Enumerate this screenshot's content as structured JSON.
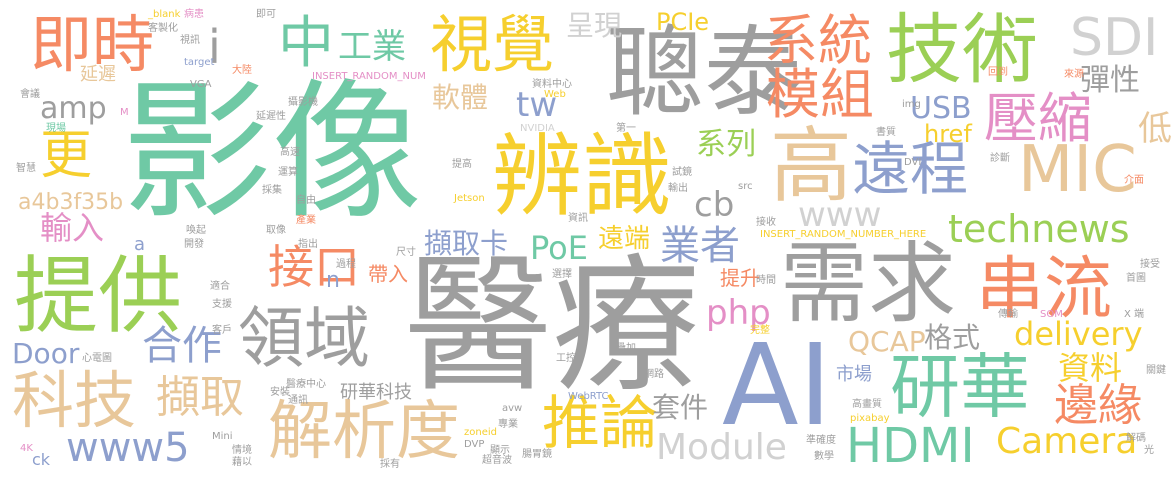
{
  "cloud": {
    "words": [
      {
        "text": "影像",
        "color": "#6fc9a5"
      },
      {
        "text": "醫療",
        "color": "#9e9e9e"
      },
      {
        "text": "AI",
        "color": "#8d9fcd"
      },
      {
        "text": "聰泰",
        "color": "#9e9e9e"
      },
      {
        "text": "需求",
        "color": "#9e9e9e"
      },
      {
        "text": "辨識",
        "color": "#f6cf2e"
      },
      {
        "text": "技術",
        "color": "#9bcf55"
      },
      {
        "text": "視覺",
        "color": "#f6cf2e"
      },
      {
        "text": "提供",
        "color": "#9bcf55"
      },
      {
        "text": "MIC",
        "color": "#e8c79a"
      },
      {
        "text": "高",
        "color": "#e8c79a"
      },
      {
        "text": "遠程",
        "color": "#8d9fcd"
      },
      {
        "text": "研華",
        "color": "#6fc9a5"
      },
      {
        "text": "串流",
        "color": "#f58a64"
      },
      {
        "text": "領域",
        "color": "#9e9e9e"
      },
      {
        "text": "解析度",
        "color": "#e8c79a"
      },
      {
        "text": "科技",
        "color": "#e8c79a"
      },
      {
        "text": "推論",
        "color": "#f6cf2e"
      },
      {
        "text": "即時",
        "color": "#f58a64"
      },
      {
        "text": "系統",
        "color": "#f58a64"
      },
      {
        "text": "模組",
        "color": "#f58a64"
      },
      {
        "text": "中",
        "color": "#6fc9a5"
      },
      {
        "text": "工業",
        "color": "#6fc9a5"
      },
      {
        "text": "HDMI",
        "color": "#6fc9a5"
      },
      {
        "text": "壓縮",
        "color": "#e48fc6"
      },
      {
        "text": "SDI",
        "color": "#d1d1d1"
      },
      {
        "text": "彈性",
        "color": "#9e9e9e"
      },
      {
        "text": "i",
        "color": "#9e9e9e"
      },
      {
        "text": "接",
        "color": "#f58a64"
      },
      {
        "text": "口",
        "color": "#f58a64"
      },
      {
        "text": "technews",
        "color": "#9bcf55"
      },
      {
        "text": "www5",
        "color": "#8d9fcd"
      },
      {
        "text": "Camera",
        "color": "#f6cf2e"
      },
      {
        "text": "Module",
        "color": "#d1d1d1"
      },
      {
        "text": "擷取",
        "color": "#e8c79a"
      },
      {
        "text": "邊緣",
        "color": "#f58a64"
      },
      {
        "text": "資料",
        "color": "#f6cf2e"
      },
      {
        "text": "delivery",
        "color": "#f6cf2e"
      },
      {
        "text": "合作",
        "color": "#8d9fcd"
      },
      {
        "text": "更",
        "color": "#f6cf2e"
      },
      {
        "text": "業者",
        "color": "#8d9fcd"
      },
      {
        "text": "PoE",
        "color": "#6fc9a5"
      },
      {
        "text": "www",
        "color": "#d1d1d1"
      },
      {
        "text": "USB",
        "color": "#8d9fcd"
      },
      {
        "text": "低",
        "color": "#e8c79a"
      },
      {
        "text": "php",
        "color": "#e48fc6"
      },
      {
        "text": "cb",
        "color": "#9e9e9e"
      },
      {
        "text": "tw",
        "color": "#8d9fcd"
      },
      {
        "text": "amp",
        "color": "#9e9e9e"
      },
      {
        "text": "呈現",
        "color": "#d1d1d1"
      },
      {
        "text": "PCIe",
        "color": "#f6cf2e"
      },
      {
        "text": "軟體",
        "color": "#e8c79a"
      },
      {
        "text": "系列",
        "color": "#9bcf55"
      },
      {
        "text": "QCAP",
        "color": "#e8c79a"
      },
      {
        "text": "格式",
        "color": "#9e9e9e"
      },
      {
        "text": "Door",
        "color": "#8d9fcd"
      },
      {
        "text": "輸入",
        "color": "#e48fc6"
      },
      {
        "text": "a4b3f35b",
        "color": "#e8c79a"
      },
      {
        "text": "擷取卡",
        "color": "#8d9fcd"
      },
      {
        "text": "遠端",
        "color": "#f6cf2e"
      },
      {
        "text": "套件",
        "color": "#9e9e9e"
      },
      {
        "text": "href",
        "color": "#f6cf2e"
      },
      {
        "text": "提升",
        "color": "#f58a64"
      },
      {
        "text": "帶入",
        "color": "#f58a64"
      },
      {
        "text": "研華科技",
        "color": "#9e9e9e"
      },
      {
        "text": "市場",
        "color": "#8d9fcd"
      },
      {
        "text": "延遲",
        "color": "#e8c79a"
      },
      {
        "text": "n",
        "color": "#8d9fcd"
      },
      {
        "text": "a",
        "color": "#8d9fcd"
      },
      {
        "text": "ck",
        "color": "#8d9fcd"
      },
      {
        "text": "_blank",
        "color": "#f6cf2e"
      },
      {
        "text": "即可",
        "color": "#9e9e9e"
      },
      {
        "text": "客製化",
        "color": "#9e9e9e"
      },
      {
        "text": "病患",
        "color": "#e48fc6"
      },
      {
        "text": "視訊",
        "color": "#9e9e9e"
      },
      {
        "text": "target",
        "color": "#8d9fcd"
      },
      {
        "text": "VGA",
        "color": "#9e9e9e"
      },
      {
        "text": "大陸",
        "color": "#f58a64"
      },
      {
        "text": "INSERT_RANDOM_NUM",
        "color": "#e48fc6"
      },
      {
        "text": "資料中心",
        "color": "#9e9e9e"
      },
      {
        "text": "Web",
        "color": "#f6cf2e"
      },
      {
        "text": "攝影機",
        "color": "#9e9e9e"
      },
      {
        "text": "NVIDIA",
        "color": "#d1d1d1"
      },
      {
        "text": "第一",
        "color": "#9e9e9e"
      },
      {
        "text": "img",
        "color": "#9e9e9e"
      },
      {
        "text": "書質",
        "color": "#9e9e9e"
      },
      {
        "text": "會議",
        "color": "#9e9e9e"
      },
      {
        "text": "現場",
        "color": "#6fc9a5"
      },
      {
        "text": "M",
        "color": "#e48fc6"
      },
      {
        "text": "延遲性",
        "color": "#9e9e9e"
      },
      {
        "text": "高速",
        "color": "#9e9e9e"
      },
      {
        "text": "智慧",
        "color": "#9e9e9e"
      },
      {
        "text": "運算",
        "color": "#9e9e9e"
      },
      {
        "text": "採集",
        "color": "#9e9e9e"
      },
      {
        "text": "自由",
        "color": "#9e9e9e"
      },
      {
        "text": "輸出",
        "color": "#9e9e9e"
      },
      {
        "text": "提高",
        "color": "#9e9e9e"
      },
      {
        "text": "試鏡",
        "color": "#9e9e9e"
      },
      {
        "text": "src",
        "color": "#9e9e9e"
      },
      {
        "text": "DVI",
        "color": "#9e9e9e"
      },
      {
        "text": "診斷",
        "color": "#9e9e9e"
      },
      {
        "text": "介面",
        "color": "#f58a64"
      },
      {
        "text": "回到",
        "color": "#f58a64"
      },
      {
        "text": "來源",
        "color": "#f58a64"
      },
      {
        "text": "Jetson",
        "color": "#f6cf2e"
      },
      {
        "text": "產業",
        "color": "#f58a64"
      },
      {
        "text": "取像",
        "color": "#9e9e9e"
      },
      {
        "text": "指出",
        "color": "#9e9e9e"
      },
      {
        "text": "過程",
        "color": "#9e9e9e"
      },
      {
        "text": "尺寸",
        "color": "#9e9e9e"
      },
      {
        "text": "資訊",
        "color": "#9e9e9e"
      },
      {
        "text": "接收",
        "color": "#9e9e9e"
      },
      {
        "text": "INSERT_RANDOM_NUMBER_HERE",
        "color": "#f6cf2e"
      },
      {
        "text": "時間",
        "color": "#9e9e9e"
      },
      {
        "text": "接受",
        "color": "#9e9e9e"
      },
      {
        "text": "首圖",
        "color": "#9e9e9e"
      },
      {
        "text": "傳輸",
        "color": "#9e9e9e"
      },
      {
        "text": "SOM",
        "color": "#e48fc6"
      },
      {
        "text": "X 端",
        "color": "#9e9e9e"
      },
      {
        "text": "喚起",
        "color": "#9e9e9e"
      },
      {
        "text": "開發",
        "color": "#9e9e9e"
      },
      {
        "text": "適合",
        "color": "#9e9e9e"
      },
      {
        "text": "支援",
        "color": "#9e9e9e"
      },
      {
        "text": "客戶",
        "color": "#9e9e9e"
      },
      {
        "text": "心電圖",
        "color": "#9e9e9e"
      },
      {
        "text": "醫療中心",
        "color": "#9e9e9e"
      },
      {
        "text": "安裝",
        "color": "#9e9e9e"
      },
      {
        "text": "通訊",
        "color": "#9e9e9e"
      },
      {
        "text": "選擇",
        "color": "#9e9e9e"
      },
      {
        "text": "完整",
        "color": "#f6cf2e"
      },
      {
        "text": "疊加",
        "color": "#9e9e9e"
      },
      {
        "text": "網路",
        "color": "#9e9e9e"
      },
      {
        "text": "工控",
        "color": "#9e9e9e"
      },
      {
        "text": "WebRTC",
        "color": "#8d9fcd"
      },
      {
        "text": "avw",
        "color": "#9e9e9e"
      },
      {
        "text": "專業",
        "color": "#9e9e9e"
      },
      {
        "text": "顯示",
        "color": "#9e9e9e"
      },
      {
        "text": "超音波",
        "color": "#9e9e9e"
      },
      {
        "text": "腸胃鏡",
        "color": "#9e9e9e"
      },
      {
        "text": "zoneid",
        "color": "#f6cf2e"
      },
      {
        "text": "DVP",
        "color": "#9e9e9e"
      },
      {
        "text": "pixabay",
        "color": "#f6cf2e"
      },
      {
        "text": "準確度",
        "color": "#9e9e9e"
      },
      {
        "text": "數學",
        "color": "#9e9e9e"
      },
      {
        "text": "解碼",
        "color": "#9e9e9e"
      },
      {
        "text": "高畫質",
        "color": "#9e9e9e"
      },
      {
        "text": "光",
        "color": "#9e9e9e"
      },
      {
        "text": "關鍵",
        "color": "#9e9e9e"
      },
      {
        "text": "4K",
        "color": "#e48fc6"
      },
      {
        "text": "Mini",
        "color": "#9e9e9e"
      },
      {
        "text": "情境",
        "color": "#9e9e9e"
      },
      {
        "text": "藉以",
        "color": "#9e9e9e"
      },
      {
        "text": "採有",
        "color": "#9e9e9e"
      }
    ]
  }
}
